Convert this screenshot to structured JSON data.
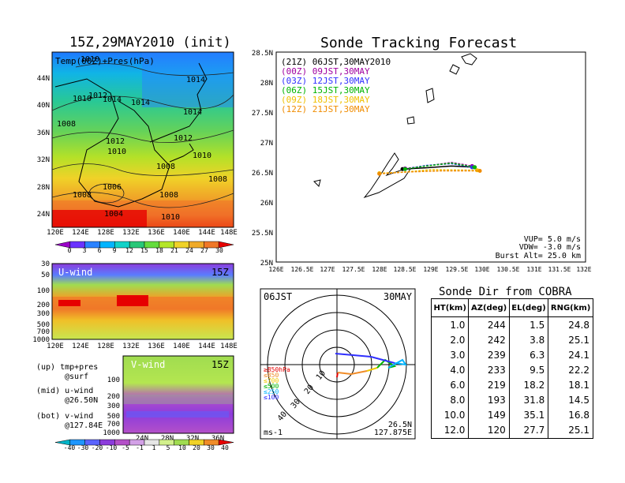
{
  "left_title": "15Z,29MAY2010 (init)",
  "main_title": "Sonde Tracking Forecast",
  "panel_a": {
    "label": "Temp(00Z)+Pres(hPa)",
    "lat_ticks": [
      "44N",
      "40N",
      "36N",
      "32N",
      "28N",
      "24N"
    ],
    "lon_ticks": [
      "120E",
      "124E",
      "128E",
      "132E",
      "136E",
      "140E",
      "144E",
      "148E"
    ],
    "contour_labels": [
      "1010",
      "1014",
      "1010",
      "1012",
      "1014",
      "1014",
      "1014",
      "1008",
      "1012",
      "1012",
      "1010",
      "1008",
      "1010",
      "1008",
      "1006",
      "1008",
      "1008",
      "1004",
      "1010"
    ],
    "colorbar_ticks": [
      "0",
      "3",
      "6",
      "9",
      "12",
      "15",
      "18",
      "21",
      "24",
      "27",
      "30"
    ],
    "colorbar_colors": [
      "#9a00c8",
      "#6a32ff",
      "#2a82ff",
      "#00b4ff",
      "#10d2c8",
      "#28c878",
      "#64dc3c",
      "#b4e628",
      "#f0d228",
      "#f0aa28",
      "#f07828",
      "#e60000"
    ]
  },
  "panel_b": {
    "label": "U-wind",
    "time": "15Z",
    "pres_ticks": [
      "30",
      "50",
      "100",
      "200",
      "300",
      "500",
      "700",
      "1000"
    ],
    "lon_ticks": [
      "120E",
      "124E",
      "128E",
      "132E",
      "136E",
      "140E",
      "144E",
      "148E"
    ]
  },
  "panel_c": {
    "label": "V-wind",
    "time": "15Z",
    "pres_ticks": [
      "100",
      "200",
      "300",
      "500",
      "700",
      "1000"
    ],
    "lat_ticks": [
      "24N",
      "28N",
      "32N",
      "36N"
    ],
    "colorbar_ticks": [
      "-40",
      "-30",
      "-20",
      "-10",
      "-5",
      "-1",
      "1",
      "5",
      "10",
      "20",
      "30",
      "40"
    ],
    "colorbar_colors": [
      "#00b4c8",
      "#1e96ff",
      "#5a64ff",
      "#8c3cdc",
      "#b450c8",
      "#d2a0e6",
      "#e6e6e6",
      "#d2f08c",
      "#a0dc50",
      "#f0d228",
      "#f08c28",
      "#e60000"
    ]
  },
  "legend_notes": [
    {
      "line1": "(up) tmp+pres",
      "line2": "@surf"
    },
    {
      "line1": "(mid) u-wind",
      "line2": "@26.50N"
    },
    {
      "line1": "(bot) v-wind",
      "line2": "@127.84E"
    }
  ],
  "track_map": {
    "legend": [
      {
        "text": "(21Z) 06JST,30MAY2010",
        "color": "#000000"
      },
      {
        "text": "(00Z) 09JST,30MAY",
        "color": "#a000a0"
      },
      {
        "text": "(03Z) 12JST,30MAY",
        "color": "#3030ff"
      },
      {
        "text": "(06Z) 15JST,30MAY",
        "color": "#00b400"
      },
      {
        "text": "(09Z) 18JST,30MAY",
        "color": "#f0c000"
      },
      {
        "text": "(12Z) 21JST,30MAY",
        "color": "#f08c00"
      }
    ],
    "lat_ticks": [
      "28.5N",
      "28N",
      "27.5N",
      "27N",
      "26.5N",
      "26N",
      "25.5N",
      "25N"
    ],
    "lon_ticks": [
      "126E",
      "126.5E",
      "127E",
      "127.5E",
      "128E",
      "128.5E",
      "129E",
      "129.5E",
      "130E",
      "130.5E",
      "131E",
      "131.5E",
      "132E"
    ],
    "info": [
      "VUP=  5.0  m/s",
      "VDW= -3.0  m/s",
      "Burst Alt=  25.0  km"
    ]
  },
  "polar": {
    "time_label": "06JST",
    "date_label": "30MAY",
    "ring_labels": [
      "10",
      "20",
      "30",
      "40"
    ],
    "pressure_legend": [
      {
        "text": "≥850hPa",
        "color": "#e60000"
      },
      {
        "text": "≤850",
        "color": "#f08c28"
      },
      {
        "text": "≤700",
        "color": "#f0c800"
      },
      {
        "text": "≤500",
        "color": "#00b400"
      },
      {
        "text": "≤250",
        "color": "#00b4ff"
      },
      {
        "text": "≤100",
        "color": "#3030ff"
      }
    ],
    "unit": "ms-1",
    "lat": "26.5N",
    "lon": "127.875E"
  },
  "table": {
    "title": "Sonde Dir from COBRA",
    "headers": [
      "HT(km)",
      "AZ(deg)",
      "EL(deg)",
      "RNG(km)"
    ],
    "rows": [
      [
        "1.0",
        "244",
        "1.5",
        "24.8"
      ],
      [
        "2.0",
        "242",
        "3.8",
        "25.1"
      ],
      [
        "3.0",
        "239",
        "6.3",
        "24.1"
      ],
      [
        "4.0",
        "233",
        "9.5",
        "22.2"
      ],
      [
        "6.0",
        "219",
        "18.2",
        "18.1"
      ],
      [
        "8.0",
        "193",
        "31.8",
        "14.5"
      ],
      [
        "10.0",
        "149",
        "35.1",
        "16.8"
      ],
      [
        "12.0",
        "120",
        "27.7",
        "25.1"
      ]
    ]
  },
  "chart_data": [
    {
      "type": "line",
      "title": "Sonde Tracking Forecast",
      "xlim": [
        126,
        132
      ],
      "ylim": [
        25,
        28.5
      ],
      "series": [
        {
          "name": "(21Z) 06JST,30MAY2010",
          "x": [
            128.45,
            128.9,
            129.4,
            129.85
          ],
          "y": [
            26.55,
            26.57,
            26.6,
            26.58
          ]
        },
        {
          "name": "(00Z) 09JST,30MAY",
          "x": [
            128.5,
            128.9,
            129.4,
            129.8
          ],
          "y": [
            26.56,
            26.6,
            26.66,
            26.6
          ]
        },
        {
          "name": "(03Z) 12JST,30MAY",
          "x": [
            128.5,
            128.9,
            129.4,
            129.8
          ],
          "y": [
            26.55,
            26.61,
            26.64,
            26.58
          ]
        },
        {
          "name": "(06Z) 15JST,30MAY",
          "x": [
            128.5,
            128.9,
            129.4,
            129.85
          ],
          "y": [
            26.55,
            26.6,
            26.65,
            26.58
          ]
        },
        {
          "name": "(09Z) 18JST,30MAY",
          "x": [
            128.0,
            128.5,
            129.0,
            129.9
          ],
          "y": [
            26.48,
            26.5,
            26.54,
            26.53
          ]
        },
        {
          "name": "(12Z) 21JST,30MAY",
          "x": [
            128.0,
            128.5,
            129.2,
            129.95
          ],
          "y": [
            26.47,
            26.5,
            26.52,
            26.52
          ]
        }
      ]
    },
    {
      "type": "table",
      "title": "Sonde Dir from COBRA",
      "columns": [
        "HT(km)",
        "AZ(deg)",
        "EL(deg)",
        "RNG(km)"
      ],
      "rows": [
        [
          1.0,
          244,
          1.5,
          24.8
        ],
        [
          2.0,
          242,
          3.8,
          25.1
        ],
        [
          3.0,
          239,
          6.3,
          24.1
        ],
        [
          4.0,
          233,
          9.5,
          22.2
        ],
        [
          6.0,
          219,
          18.2,
          18.1
        ],
        [
          8.0,
          193,
          31.8,
          14.5
        ],
        [
          10.0,
          149,
          35.1,
          16.8
        ],
        [
          12.0,
          120,
          27.7,
          25.1
        ]
      ]
    }
  ]
}
